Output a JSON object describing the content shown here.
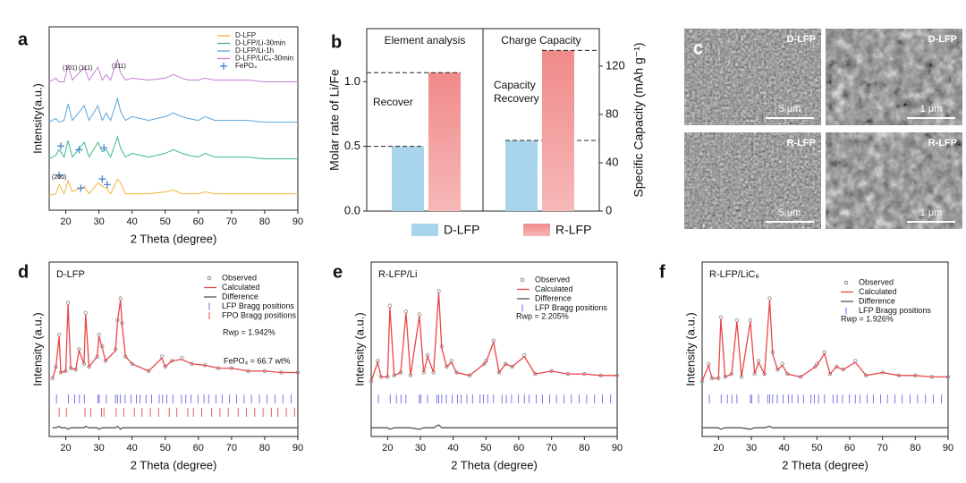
{
  "chart_data": [
    {
      "type": "line",
      "panel": "a",
      "xlabel": "2 Theta (degree)",
      "ylabel": "Intensity(a.u.)",
      "xlim": [
        15,
        90
      ],
      "ylim": [
        0,
        100
      ],
      "xticks": [
        20,
        30,
        40,
        50,
        60,
        70,
        80,
        90
      ],
      "x": [
        15,
        17,
        18,
        19.5,
        20.7,
        22,
        25.6,
        27,
        29.7,
        31,
        32.2,
        33.5,
        35.6,
        36.5,
        38,
        40,
        45,
        50,
        52.5,
        55,
        57,
        60,
        62,
        65,
        70,
        75,
        80,
        90
      ],
      "series": [
        {
          "name": "D-LFP",
          "color": "#f2b43c",
          "values": [
            8,
            9,
            14,
            9,
            16,
            10,
            13,
            9,
            15,
            13,
            12,
            9,
            17,
            15,
            9,
            9,
            9,
            10,
            11,
            9,
            9,
            9,
            10,
            9,
            9,
            9,
            9,
            9
          ]
        },
        {
          "name": "D-LFP/Li-30min",
          "color": "#3cb98c",
          "values": [
            28,
            30,
            33,
            29,
            38,
            29,
            37,
            29,
            37,
            32,
            33,
            29,
            40,
            34,
            29,
            31,
            29,
            31,
            33,
            31,
            30,
            29,
            31,
            29,
            29,
            29,
            28,
            28
          ]
        },
        {
          "name": "D-LFP/Li-1h",
          "color": "#5aa5d8",
          "values": [
            48,
            50,
            48,
            49,
            58,
            49,
            57,
            49,
            57,
            49,
            53,
            49,
            61,
            54,
            49,
            51,
            49,
            51,
            53,
            51,
            50,
            49,
            51,
            49,
            49,
            49,
            48,
            48
          ]
        },
        {
          "name": "D-LFP/LiC₆-30min",
          "color": "#c87ed6",
          "values": [
            70,
            72,
            70,
            70,
            79,
            71,
            78,
            71,
            78,
            71,
            74,
            71,
            82,
            75,
            71,
            72,
            71,
            72,
            74,
            72,
            71,
            71,
            72,
            71,
            71,
            71,
            70,
            70
          ]
        }
      ],
      "markers": {
        "name": "FePO₄",
        "color": "#3a7fd0",
        "x": [
          18,
          24.5,
          31,
          32.5,
          18.5,
          24,
          31.5
        ],
        "values": [
          19,
          12,
          17,
          14,
          35,
          33,
          34
        ]
      },
      "annotations": [
        "(200)",
        "(101)",
        "(111)",
        "(311)"
      ]
    },
    {
      "type": "bar",
      "panel": "b",
      "ylabel": "Molar rate of Li/Fe",
      "y2label": "Specific Capacity (mAh g⁻¹)",
      "categories": [
        "Element analysis",
        "Charge Capacity"
      ],
      "value_axes": [
        "y",
        "y2"
      ],
      "ylim": [
        0,
        1.41
      ],
      "yticks": [
        {
          "value": 0,
          "label": "0.0"
        },
        {
          "value": 0.5,
          "label": "0.5"
        },
        {
          "value": 1,
          "label": "1.0"
        }
      ],
      "y2lim": [
        0,
        151
      ],
      "y2ticks": [
        0,
        40,
        80,
        120
      ],
      "series": [
        {
          "name": "D-LFP",
          "color": "#a8d4ec",
          "values": [
            0.5,
            58.5
          ]
        },
        {
          "name": "R-LFP",
          "color": "#f5a8a8",
          "values": [
            1.07,
            133
          ]
        }
      ],
      "annotations": [
        "Recover",
        "Capacity Recovery"
      ]
    },
    {
      "type": "line",
      "panel": "d",
      "title": "D-LFP",
      "xlabel": "2 Theta (degree)",
      "ylabel": "Intensity (a.u.)",
      "xlim": [
        15,
        90
      ],
      "ylim": [
        0,
        120
      ],
      "xticks": [
        20,
        30,
        40,
        50,
        60,
        70,
        80,
        90
      ],
      "x": [
        16,
        17,
        18,
        18.5,
        20,
        20.7,
        21.5,
        23,
        24,
        25.5,
        26,
        27,
        29.5,
        30,
        31,
        32,
        35,
        35.6,
        36.5,
        37,
        38,
        40,
        45,
        49,
        50,
        52,
        55,
        58,
        62,
        66,
        70,
        75,
        80,
        85,
        90
      ],
      "series": [
        {
          "name": "Observed",
          "color": "#8a8a8a",
          "marker": "circle",
          "values": [
            40,
            48,
            70,
            44,
            45,
            92,
            47,
            46,
            60,
            50,
            85,
            48,
            55,
            70,
            62,
            52,
            60,
            80,
            95,
            78,
            55,
            50,
            45,
            55,
            48,
            52,
            54,
            50,
            49,
            47,
            47,
            45,
            45,
            44,
            44
          ]
        },
        {
          "name": "Calculated",
          "color": "#e8474a",
          "values": [
            40,
            47,
            69,
            44,
            45,
            91,
            47,
            46,
            59,
            50,
            84,
            48,
            55,
            69,
            61,
            52,
            59,
            79,
            94,
            77,
            55,
            50,
            45,
            54,
            48,
            52,
            53,
            50,
            49,
            47,
            47,
            45,
            45,
            44,
            44
          ]
        },
        {
          "name": "Difference",
          "color": "#555555",
          "values": [
            6,
            6,
            7,
            6,
            6,
            5,
            6,
            6,
            6,
            6,
            7,
            6,
            6,
            5,
            6,
            6,
            6,
            7,
            5,
            6,
            6,
            6,
            6,
            6,
            6,
            6,
            6,
            6,
            6,
            6,
            6,
            6,
            6,
            6,
            6
          ]
        }
      ],
      "bragg": [
        {
          "name": "LFP Bragg positions",
          "color": "#6a6ae8",
          "positions": [
            17.2,
            20.8,
            22.7,
            24.1,
            25.6,
            29.7,
            30.1,
            32.2,
            35.0,
            35.6,
            36.5,
            37.9,
            39.7,
            41.3,
            42.4,
            44.2,
            45.9,
            48.2,
            49.2,
            50.5,
            52.3,
            54.9,
            56.2,
            57.8,
            59.9,
            61.7,
            63.1,
            65.3,
            67.2,
            69.4,
            71.5,
            73.8,
            76.0,
            78.4,
            80.7,
            83.1,
            85.5,
            88.0
          ]
        },
        {
          "name": "FPO Bragg positions",
          "color": "#e84a4a",
          "positions": [
            18.0,
            20.2,
            25.8,
            27.5,
            30.8,
            31.5,
            35.2,
            37.5,
            40.7,
            43.0,
            45.5,
            48.0,
            51.2,
            53.5,
            56.8,
            58.5,
            61.0,
            64.0,
            66.5,
            69.0,
            72.0,
            74.5,
            77.0,
            79.5,
            82.0,
            84.0,
            86.5,
            89.0
          ]
        }
      ],
      "annotations": [
        "Rwp = 1.942%",
        "FePO₄ = 66.7 wt%"
      ]
    },
    {
      "type": "line",
      "panel": "e",
      "title": "R-LFP/Li",
      "xlabel": "2 Theta (degree)",
      "ylabel": "Intensity (a.u.)",
      "xlim": [
        15,
        90
      ],
      "ylim": [
        0,
        120
      ],
      "xticks": [
        20,
        30,
        40,
        50,
        60,
        70,
        80,
        90
      ],
      "x": [
        15,
        17,
        18,
        20,
        20.7,
        22,
        24,
        25.6,
        27,
        29.7,
        31,
        32.2,
        34,
        35.6,
        36.5,
        38,
        39.5,
        41,
        45,
        49.5,
        50,
        52.3,
        54,
        56,
        58,
        61.7,
        65,
        70,
        75,
        80,
        85,
        90
      ],
      "series": [
        {
          "name": "Observed",
          "color": "#8a8a8a",
          "marker": "circle",
          "values": [
            38,
            52,
            41,
            41,
            90,
            42,
            44,
            86,
            42,
            84,
            44,
            56,
            44,
            100,
            62,
            48,
            52,
            44,
            42,
            50,
            52,
            66,
            44,
            50,
            48,
            56,
            43,
            45,
            43,
            43,
            42,
            42
          ]
        },
        {
          "name": "Calculated",
          "color": "#e8474a",
          "values": [
            38,
            51,
            41,
            41,
            89,
            42,
            44,
            85,
            42,
            83,
            44,
            55,
            44,
            99,
            61,
            48,
            51,
            44,
            42,
            50,
            51,
            65,
            44,
            50,
            48,
            55,
            43,
            45,
            43,
            43,
            42,
            42
          ]
        },
        {
          "name": "Difference",
          "color": "#555555",
          "values": [
            6,
            6,
            6,
            6,
            5,
            6,
            6,
            6,
            6,
            5,
            6,
            6,
            6,
            8,
            6,
            6,
            6,
            6,
            6,
            6,
            6,
            6,
            6,
            6,
            6,
            6,
            6,
            6,
            6,
            6,
            6,
            6
          ]
        }
      ],
      "bragg": [
        {
          "name": "LFP Bragg positions",
          "color": "#6a6ae8",
          "positions": [
            17.2,
            20.8,
            22.7,
            24.1,
            25.6,
            29.7,
            30.1,
            32.2,
            35.0,
            35.6,
            36.5,
            37.9,
            39.7,
            41.3,
            42.4,
            44.2,
            45.9,
            48.2,
            49.2,
            50.5,
            52.3,
            54.9,
            56.2,
            57.8,
            59.9,
            61.7,
            63.1,
            65.3,
            67.2,
            69.4,
            71.5,
            73.8,
            76.0,
            78.4,
            80.7,
            83.1,
            85.5,
            88.0
          ]
        }
      ],
      "annotations": [
        "Rwp = 2.205%"
      ]
    },
    {
      "type": "line",
      "panel": "f",
      "title": "R-LFP/LiC₆",
      "xlabel": "2 Theta (degree)",
      "ylabel": "Intensity (a.u.)",
      "xlim": [
        15,
        90
      ],
      "ylim": [
        0,
        120
      ],
      "xticks": [
        20,
        30,
        40,
        50,
        60,
        70,
        80,
        90
      ],
      "x": [
        15,
        17,
        18,
        20,
        20.7,
        22,
        24,
        25.6,
        27,
        29.7,
        31,
        32.2,
        34,
        35.6,
        36.5,
        38,
        39.5,
        41,
        45,
        49.5,
        50,
        52.3,
        54,
        56,
        58,
        61.7,
        65,
        70,
        75,
        80,
        85,
        90
      ],
      "series": [
        {
          "name": "Observed",
          "color": "#8a8a8a",
          "marker": "circle",
          "values": [
            38,
            50,
            40,
            40,
            82,
            41,
            43,
            80,
            41,
            80,
            43,
            52,
            43,
            95,
            58,
            46,
            50,
            43,
            41,
            48,
            50,
            58,
            43,
            48,
            46,
            52,
            42,
            44,
            42,
            42,
            41,
            41
          ]
        },
        {
          "name": "Calculated",
          "color": "#e8474a",
          "values": [
            38,
            49,
            40,
            40,
            81,
            41,
            43,
            79,
            41,
            79,
            43,
            51,
            43,
            94,
            57,
            46,
            49,
            43,
            41,
            48,
            49,
            57,
            43,
            48,
            46,
            51,
            42,
            44,
            42,
            42,
            41,
            41
          ]
        },
        {
          "name": "Difference",
          "color": "#555555",
          "values": [
            6,
            6,
            6,
            6,
            5,
            6,
            6,
            6,
            6,
            5,
            6,
            6,
            6,
            7,
            6,
            6,
            6,
            6,
            6,
            6,
            6,
            6,
            6,
            6,
            6,
            6,
            6,
            6,
            6,
            6,
            6,
            6
          ]
        }
      ],
      "bragg": [
        {
          "name": "LFP Bragg positions",
          "color": "#6a6ae8",
          "positions": [
            17.2,
            20.8,
            22.7,
            24.1,
            25.6,
            29.7,
            30.1,
            32.2,
            35.0,
            35.6,
            36.5,
            37.9,
            39.7,
            41.3,
            42.4,
            44.2,
            45.9,
            48.2,
            49.2,
            50.5,
            52.3,
            54.9,
            56.2,
            57.8,
            59.9,
            61.7,
            63.1,
            65.3,
            67.2,
            69.4,
            71.5,
            73.8,
            76.0,
            78.4,
            80.7,
            83.1,
            85.5,
            88.0
          ]
        }
      ],
      "annotations": [
        "Rwp = 1.926%"
      ]
    }
  ],
  "sem_images": {
    "panel": "c",
    "images": [
      {
        "label": "D-LFP",
        "scale_bar": "5 μm"
      },
      {
        "label": "D-LFP",
        "scale_bar": "1 μm"
      },
      {
        "label": "R-LFP",
        "scale_bar": "5 μm"
      },
      {
        "label": "R-LFP",
        "scale_bar": "1 μm"
      }
    ]
  }
}
